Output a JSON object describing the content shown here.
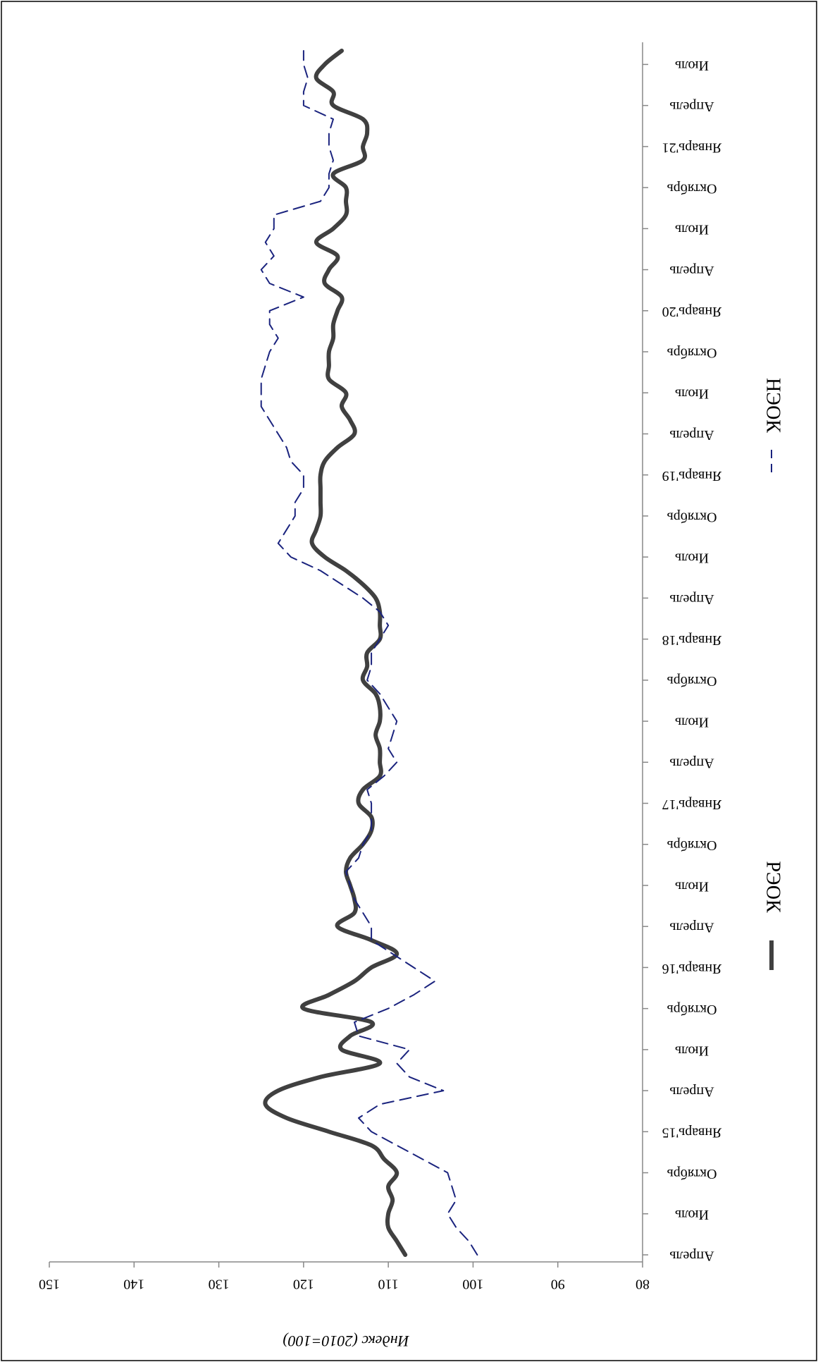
{
  "chart_data": {
    "type": "line",
    "ylabel": "Индекс (2010=100)",
    "ylim": [
      80,
      150
    ],
    "y_ticks": [
      80,
      90,
      100,
      110,
      120,
      130,
      140,
      150
    ],
    "x_tick_labels": [
      "Апрель",
      "Июль",
      "Октябрь",
      "Январь'15",
      "Апрель",
      "Июль",
      "Октябрь",
      "Январь'16",
      "Апрель",
      "Июль",
      "Октябрь",
      "Январь'17",
      "Апрель",
      "Июль",
      "Октябрь",
      "Январь'18",
      "Апрель",
      "Июль",
      "Октябрь",
      "Январь'19",
      "Апрель",
      "Июль",
      "Октябрь",
      "Январь'20",
      "Апрель",
      "Июль",
      "Октябрь",
      "Январь'21",
      "Апрель",
      "Июль"
    ],
    "x": [
      "2014-04",
      "2014-05",
      "2014-06",
      "2014-07",
      "2014-08",
      "2014-09",
      "2014-10",
      "2014-11",
      "2014-12",
      "2015-01",
      "2015-02",
      "2015-03",
      "2015-04",
      "2015-05",
      "2015-06",
      "2015-07",
      "2015-08",
      "2015-09",
      "2015-10",
      "2015-11",
      "2015-12",
      "2016-01",
      "2016-02",
      "2016-03",
      "2016-04",
      "2016-05",
      "2016-06",
      "2016-07",
      "2016-08",
      "2016-09",
      "2016-10",
      "2016-11",
      "2016-12",
      "2017-01",
      "2017-02",
      "2017-03",
      "2017-04",
      "2017-05",
      "2017-06",
      "2017-07",
      "2017-08",
      "2017-09",
      "2017-10",
      "2017-11",
      "2017-12",
      "2018-01",
      "2018-02",
      "2018-03",
      "2018-04",
      "2018-05",
      "2018-06",
      "2018-07",
      "2018-08",
      "2018-09",
      "2018-10",
      "2018-11",
      "2018-12",
      "2019-01",
      "2019-02",
      "2019-03",
      "2019-04",
      "2019-05",
      "2019-06",
      "2019-07",
      "2019-08",
      "2019-09",
      "2019-10",
      "2019-11",
      "2019-12",
      "2020-01",
      "2020-02",
      "2020-03",
      "2020-04",
      "2020-05",
      "2020-06",
      "2020-07",
      "2020-08",
      "2020-09",
      "2020-10",
      "2020-11",
      "2020-12",
      "2021-01",
      "2021-02",
      "2021-03",
      "2021-04",
      "2021-05",
      "2021-06",
      "2021-07",
      "2021-08"
    ],
    "series": [
      {
        "name": "РЭОК",
        "color": "#404040",
        "style": "solid",
        "values": [
          108,
          109,
          110,
          110,
          109.5,
          110,
          109,
          110.5,
          112,
          117,
          122,
          124.5,
          123,
          118,
          111,
          115.5,
          114.5,
          112,
          120,
          117,
          114,
          112,
          109,
          112,
          116,
          114,
          114,
          114.5,
          115,
          114.5,
          113,
          112,
          112,
          113.5,
          113,
          111,
          111,
          111,
          111.5,
          111,
          111,
          111.5,
          113,
          112.5,
          112.5,
          111,
          111,
          111,
          111.5,
          113,
          115,
          117.5,
          119,
          118.5,
          118,
          118,
          118,
          118,
          117.5,
          116,
          114,
          114.5,
          115.5,
          115,
          117,
          117,
          117,
          116.5,
          116.5,
          116,
          115.5,
          117.5,
          117,
          116,
          118.5,
          116.5,
          115,
          115,
          115,
          116.5,
          113,
          113,
          112.5,
          113,
          116.5,
          116.5,
          118.5,
          117.5,
          115.5
        ]
      },
      {
        "name": "НЭОК",
        "color": "#1a237e",
        "style": "dashed",
        "values": [
          99.5,
          100.5,
          102,
          103,
          102,
          102.5,
          103,
          106,
          109,
          112,
          113.5,
          111,
          103.5,
          107.5,
          109,
          107.5,
          113.5,
          114,
          110,
          107,
          104.5,
          107,
          109.5,
          112,
          112,
          113,
          114,
          114.5,
          115,
          113.5,
          113,
          112,
          112,
          112,
          112.5,
          110.5,
          109,
          110,
          109.5,
          109,
          110,
          111,
          112.5,
          112,
          112,
          111,
          110,
          111,
          113,
          115.5,
          118,
          121.5,
          123,
          122,
          121,
          121,
          120,
          120,
          121.5,
          122,
          123,
          124,
          125,
          125,
          125,
          124.5,
          124,
          123,
          124,
          124,
          120,
          124,
          125,
          123.5,
          124.5,
          123.5,
          123.5,
          118,
          117,
          117,
          116.5,
          117,
          117,
          116.5,
          120,
          120,
          119.5,
          120,
          120
        ]
      }
    ],
    "legend": {
      "position": "bottom-center"
    }
  }
}
